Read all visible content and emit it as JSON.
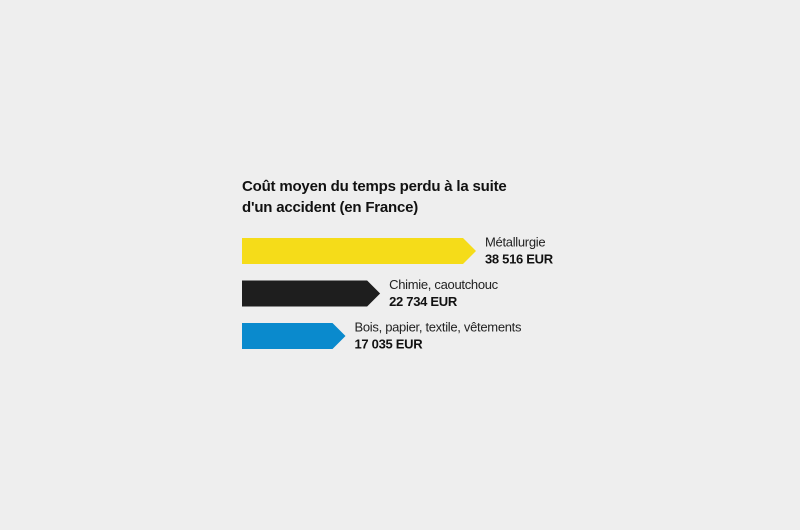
{
  "chart_data": {
    "type": "bar",
    "orientation": "horizontal",
    "title": "Coût moyen du temps perdu à la suite d'un accident (en France)",
    "categories": [
      "Métallurgie",
      "Chimie, caoutchouc",
      "Bois, papier, textile, vêtements"
    ],
    "values": [
      38516,
      22734,
      17035
    ],
    "value_labels": [
      "38 516 EUR",
      "22 734 EUR",
      "17 035 EUR"
    ],
    "colors": [
      "#f5dc19",
      "#1e1e1e",
      "#0a8acd"
    ]
  }
}
